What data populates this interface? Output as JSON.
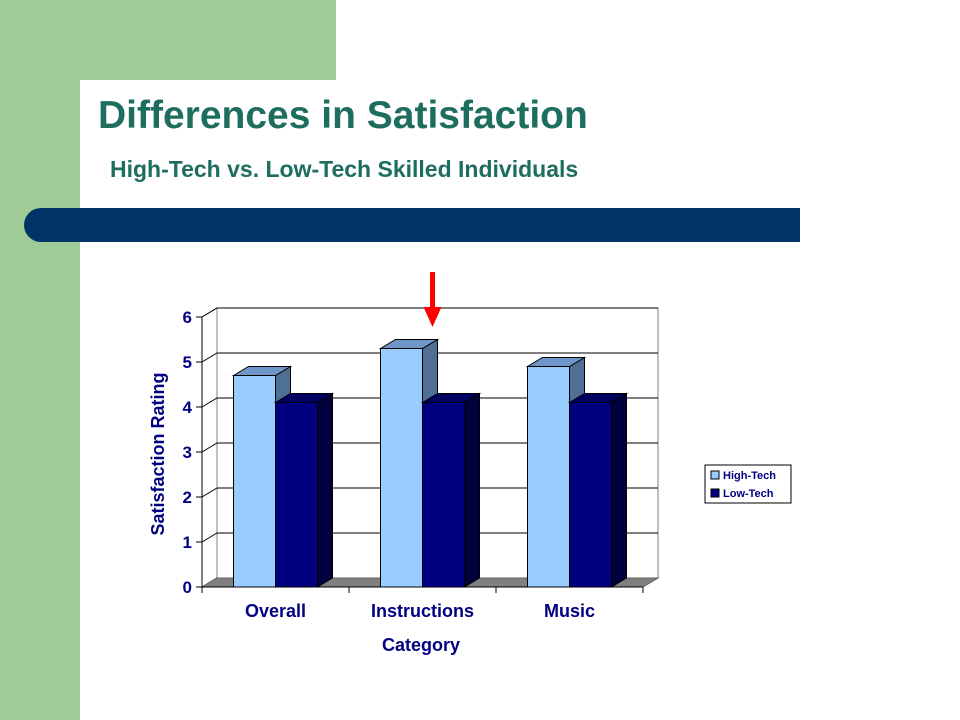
{
  "slide": {
    "title": "Differences in Satisfaction",
    "subtitle": "High-Tech vs. Low-Tech Skilled Individuals"
  },
  "colors": {
    "sidebar_green": "#9fcc96",
    "title_teal": "#1e6e60",
    "band_navy": "#003366",
    "high_tech": "#99ccff",
    "low_tech": "#000080",
    "arrow_red": "#ff0000"
  },
  "chart_data": {
    "type": "bar",
    "style": "3d-clustered-column",
    "categories": [
      "Overall",
      "Instructions",
      "Music"
    ],
    "series": [
      {
        "name": "High-Tech",
        "values": [
          4.7,
          5.3,
          4.9
        ]
      },
      {
        "name": "Low-Tech",
        "values": [
          4.1,
          4.1,
          4.1
        ]
      }
    ],
    "xlabel": "Category",
    "ylabel": "Satisfaction Rating",
    "ylim": [
      0,
      6
    ],
    "yticks": [
      "0",
      "1",
      "2",
      "3",
      "4",
      "5",
      "6"
    ],
    "grid": true,
    "legend": "right",
    "annotation": {
      "type": "arrow",
      "points_to": "Instructions",
      "color": "red"
    }
  }
}
